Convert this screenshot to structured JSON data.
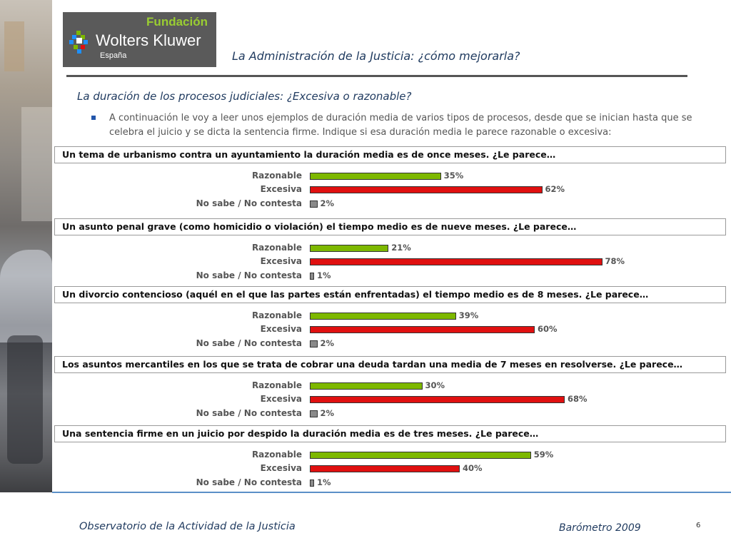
{
  "logo": {
    "line1": "Fundación",
    "line2": "Wolters Kluwer",
    "line3": "España"
  },
  "header": {
    "title": "La Administración de la Justicia: ¿cómo mejorarla?"
  },
  "section": {
    "title": "La duración de los procesos judiciales: ¿Excesiva o razonable?",
    "intro": "A continuación le voy a leer unos ejemplos de duración media de varios tipos de procesos, desde que se inician  hasta que se celebra el juicio y se dicta  la sentencia firme. Indique si esa duración media le parece razonable o excesiva:"
  },
  "colors": {
    "razonable": "#7db800",
    "excesiva": "#e01010",
    "nsnc": "#8a8a8a"
  },
  "chart_data": [
    {
      "type": "bar",
      "title": "Un tema de urbanismo contra un ayuntamiento la duración media es de once meses. ¿Le parece…",
      "categories": [
        "Razonable",
        "Excesiva",
        "No sabe / No contesta"
      ],
      "values": [
        35,
        62,
        2
      ],
      "labels": [
        "35%",
        "62%",
        "2%"
      ]
    },
    {
      "type": "bar",
      "title": "Un asunto penal grave (como homicidio o violación) el tiempo medio es de nueve meses. ¿Le parece…",
      "categories": [
        "Razonable",
        "Excesiva",
        "No sabe / No contesta"
      ],
      "values": [
        21,
        78,
        1
      ],
      "labels": [
        "21%",
        "78%",
        "1%"
      ]
    },
    {
      "type": "bar",
      "title": "Un divorcio contencioso (aquél en el que las partes están enfrentadas) el tiempo medio es de 8 meses. ¿Le parece…",
      "categories": [
        "Razonable",
        "Excesiva",
        "No sabe / No contesta"
      ],
      "values": [
        39,
        60,
        2
      ],
      "labels": [
        "39%",
        "60%",
        "2%"
      ]
    },
    {
      "type": "bar",
      "title": "Los asuntos mercantiles en los que se trata de cobrar una deuda tardan una media de 7 meses en resolverse. ¿Le parece…",
      "categories": [
        "Razonable",
        "Excesiva",
        "No sabe / No contesta"
      ],
      "values": [
        30,
        68,
        2
      ],
      "labels": [
        "30%",
        "68%",
        "2%"
      ]
    },
    {
      "type": "bar",
      "title": "Una sentencia firme en un juicio por despido la duración media es de tres meses. ¿Le parece…",
      "categories": [
        "Razonable",
        "Excesiva",
        "No sabe / No contesta"
      ],
      "values": [
        59,
        40,
        1
      ],
      "labels": [
        "59%",
        "40%",
        "1%"
      ]
    }
  ],
  "footer": {
    "left": "Observatorio de la Actividad de la Justicia",
    "right": "Barómetro 2009",
    "page": "6"
  }
}
